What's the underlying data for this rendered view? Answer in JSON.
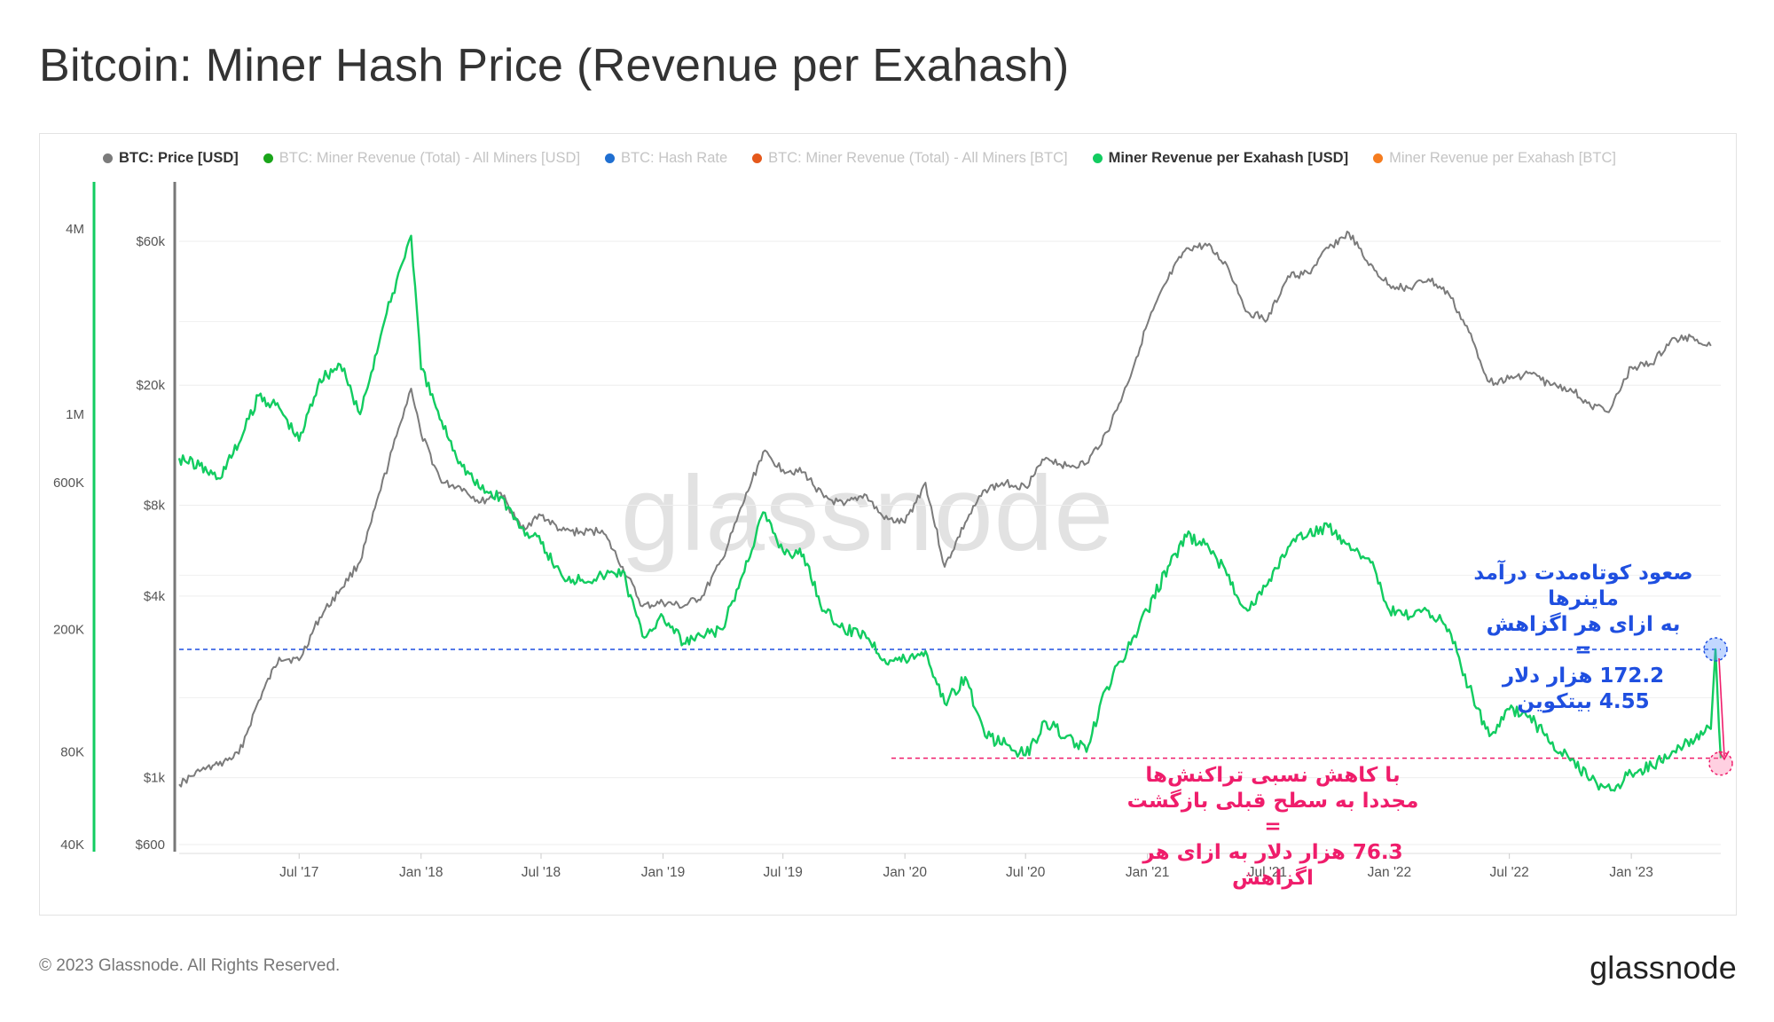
{
  "title": "Bitcoin: Miner Hash Price (Revenue per Exahash)",
  "watermark": "glassnode",
  "footer": "© 2023 Glassnode. All Rights Reserved.",
  "brand": "glassnode",
  "legend": [
    {
      "label": "BTC: Price [USD]",
      "color": "#7b7b7b",
      "active": true
    },
    {
      "label": "BTC: Miner Revenue (Total) - All Miners [USD]",
      "color": "#1aa51a",
      "active": false
    },
    {
      "label": "BTC: Hash Rate",
      "color": "#1f6fd1",
      "active": false
    },
    {
      "label": "BTC: Miner Revenue (Total) - All Miners [BTC]",
      "color": "#e5581b",
      "active": false
    },
    {
      "label": "Miner Revenue per Exahash [USD]",
      "color": "#12cc60",
      "active": true
    },
    {
      "label": "Miner Revenue per Exahash [BTC]",
      "color": "#f57c1f",
      "active": false
    }
  ],
  "annotations": {
    "blue": [
      "صعود کوتاه‌مدت درآمد ماینرها",
      "به ازای هر اگزاهش",
      "=",
      "172.2 هزار دلار",
      "4.55 بیتکوین"
    ],
    "pink": [
      "با کاهش نسبی تراکنش‌ها",
      "مجددا به سطح قبلی بازگشت",
      "=",
      "76.3 هزار دلار به ازای هر اگزاهش"
    ]
  },
  "chart_data": {
    "type": "line",
    "title": "Bitcoin: Miner Hash Price (Revenue per Exahash)",
    "x_ticks": [
      "Jul '17",
      "Jan '18",
      "Jul '18",
      "Jan '19",
      "Jul '19",
      "Jan '20",
      "Jul '20",
      "Jan '21",
      "Jul '21",
      "Jan '22",
      "Jul '22",
      "Jan '23"
    ],
    "y_left_price_ticks": [
      "$60k",
      "$20k",
      "$8k",
      "$4k",
      "$1k",
      "$600"
    ],
    "y_left_price_values": [
      60000,
      20000,
      8000,
      4000,
      1000,
      600
    ],
    "y_left_revenue_ticks": [
      "4M",
      "1M",
      "600K",
      "200K",
      "80K",
      "40K"
    ],
    "y_left_revenue_values": [
      4000000,
      1000000,
      600000,
      200000,
      80000,
      40000
    ],
    "y_scale": "log",
    "color_price": "#7b7b7b",
    "color_hash": "#12cc60",
    "ref_blue_value": 172200,
    "ref_pink_value": 76300,
    "color_blue": "#1f4fe0",
    "color_pink": "#ef1d6b",
    "series": [
      {
        "name": "BTC: Price [USD]",
        "x": [
          "2017-01-01",
          "2017-02-01",
          "2017-03-01",
          "2017-04-01",
          "2017-05-01",
          "2017-06-01",
          "2017-07-01",
          "2017-08-01",
          "2017-09-01",
          "2017-10-01",
          "2017-11-01",
          "2017-12-01",
          "2017-12-17",
          "2018-01-01",
          "2018-02-01",
          "2018-03-01",
          "2018-04-01",
          "2018-05-01",
          "2018-06-01",
          "2018-07-01",
          "2018-08-01",
          "2018-09-01",
          "2018-10-01",
          "2018-11-01",
          "2018-12-01",
          "2019-01-01",
          "2019-02-01",
          "2019-03-01",
          "2019-04-01",
          "2019-05-01",
          "2019-06-01",
          "2019-07-01",
          "2019-08-01",
          "2019-09-01",
          "2019-10-01",
          "2019-11-01",
          "2019-12-01",
          "2020-01-01",
          "2020-02-01",
          "2020-03-01",
          "2020-04-01",
          "2020-05-01",
          "2020-06-01",
          "2020-07-01",
          "2020-08-01",
          "2020-09-01",
          "2020-10-01",
          "2020-11-01",
          "2020-12-01",
          "2021-01-01",
          "2021-02-01",
          "2021-03-01",
          "2021-04-01",
          "2021-05-01",
          "2021-06-01",
          "2021-07-01",
          "2021-08-01",
          "2021-09-01",
          "2021-10-01",
          "2021-11-01",
          "2021-12-01",
          "2022-01-01",
          "2022-02-01",
          "2022-03-01",
          "2022-04-01",
          "2022-05-01",
          "2022-06-01",
          "2022-07-01",
          "2022-08-01",
          "2022-09-01",
          "2022-10-01",
          "2022-11-01",
          "2022-12-01",
          "2023-01-01",
          "2023-02-01",
          "2023-03-01",
          "2023-04-01",
          "2023-05-01"
        ],
        "values": [
          950,
          1050,
          1100,
          1200,
          1800,
          2500,
          2450,
          3400,
          4200,
          5200,
          9000,
          15000,
          19500,
          13800,
          9500,
          9200,
          8200,
          8800,
          6700,
          7400,
          6600,
          6500,
          6600,
          5000,
          3700,
          3800,
          3700,
          4000,
          5300,
          8000,
          12000,
          10500,
          10300,
          8500,
          8000,
          8700,
          7200,
          7000,
          9500,
          5000,
          7000,
          9000,
          9500,
          9200,
          11500,
          10800,
          11000,
          14000,
          20000,
          32000,
          45000,
          57000,
          58000,
          50000,
          35000,
          33000,
          46000,
          47000,
          57000,
          64000,
          50000,
          43000,
          42000,
          45000,
          40000,
          30000,
          20500,
          21000,
          22000,
          20000,
          19500,
          17000,
          16700,
          23000,
          23500,
          28000,
          29000,
          27000
        ]
      },
      {
        "name": "Miner Revenue per Exahash [USD]",
        "x": [
          "2017-01-01",
          "2017-02-01",
          "2017-03-01",
          "2017-04-01",
          "2017-05-01",
          "2017-06-01",
          "2017-07-01",
          "2017-08-01",
          "2017-09-01",
          "2017-10-01",
          "2017-11-01",
          "2017-12-01",
          "2017-12-17",
          "2018-01-01",
          "2018-02-01",
          "2018-03-01",
          "2018-04-01",
          "2018-05-01",
          "2018-06-01",
          "2018-07-01",
          "2018-08-01",
          "2018-09-01",
          "2018-10-01",
          "2018-11-01",
          "2018-12-01",
          "2019-01-01",
          "2019-02-01",
          "2019-03-01",
          "2019-04-01",
          "2019-05-01",
          "2019-06-01",
          "2019-07-01",
          "2019-08-01",
          "2019-09-01",
          "2019-10-01",
          "2019-11-01",
          "2019-12-01",
          "2020-01-01",
          "2020-02-01",
          "2020-03-01",
          "2020-04-01",
          "2020-05-01",
          "2020-06-01",
          "2020-07-01",
          "2020-08-01",
          "2020-09-01",
          "2020-10-01",
          "2020-11-01",
          "2020-12-01",
          "2021-01-01",
          "2021-02-01",
          "2021-03-01",
          "2021-04-01",
          "2021-05-01",
          "2021-06-01",
          "2021-07-01",
          "2021-08-01",
          "2021-09-01",
          "2021-10-01",
          "2021-11-01",
          "2021-12-01",
          "2022-01-01",
          "2022-02-01",
          "2022-03-01",
          "2022-04-01",
          "2022-05-01",
          "2022-06-01",
          "2022-07-01",
          "2022-08-01",
          "2022-09-01",
          "2022-10-01",
          "2022-11-01",
          "2022-12-01",
          "2023-01-01",
          "2023-02-01",
          "2023-03-01",
          "2023-04-01",
          "2023-05-01",
          "2023-05-08",
          "2023-05-16"
        ],
        "values": [
          720000,
          680000,
          620000,
          800000,
          1150000,
          1050000,
          820000,
          1300000,
          1450000,
          1000000,
          1800000,
          3000000,
          3800000,
          1400000,
          950000,
          700000,
          570000,
          540000,
          430000,
          380000,
          300000,
          290000,
          300000,
          310000,
          190000,
          220000,
          180000,
          190000,
          200000,
          300000,
          480000,
          360000,
          350000,
          230000,
          200000,
          195000,
          160000,
          160000,
          170000,
          115000,
          140000,
          90000,
          85000,
          78000,
          100000,
          90000,
          80000,
          130000,
          170000,
          230000,
          320000,
          400000,
          380000,
          300000,
          230000,
          280000,
          370000,
          410000,
          430000,
          380000,
          340000,
          230000,
          220000,
          230000,
          200000,
          130000,
          90000,
          110000,
          105000,
          85000,
          75000,
          65000,
          60000,
          68000,
          72000,
          78000,
          88000,
          95000,
          172200,
          76300
        ]
      }
    ]
  }
}
